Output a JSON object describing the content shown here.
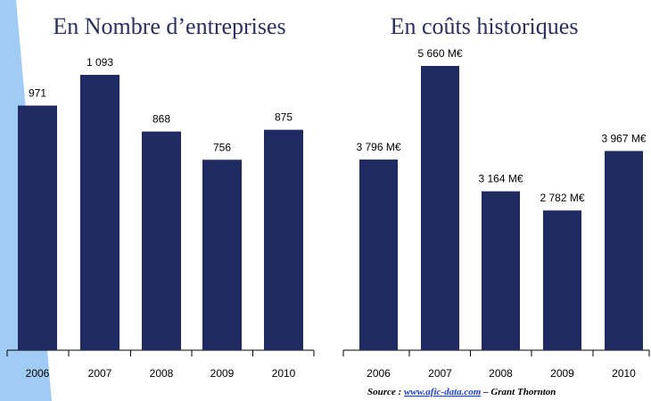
{
  "chart_data": [
    {
      "type": "bar",
      "title": "En Nombre d’entreprises",
      "categories": [
        "2006",
        "2007",
        "2008",
        "2009",
        "2010"
      ],
      "values": [
        971,
        1093,
        868,
        756,
        875
      ],
      "value_labels": [
        "971",
        "1 093",
        "868",
        "756",
        "875"
      ],
      "color": "#1f2a63"
    },
    {
      "type": "bar",
      "title": "En coûts historiques",
      "categories": [
        "2006",
        "2007",
        "2008",
        "2009",
        "2010"
      ],
      "values": [
        3796,
        5660,
        3164,
        2782,
        3967
      ],
      "value_labels": [
        "3 796 M€",
        "5 660 M€",
        "3 164 M€",
        "2 782 M€",
        "3 967 M€"
      ],
      "color": "#1f2a63"
    }
  ],
  "source": {
    "prefix": "Source :",
    "link": "www.afic-data.com",
    "suffix": "– Grant Thornton"
  }
}
